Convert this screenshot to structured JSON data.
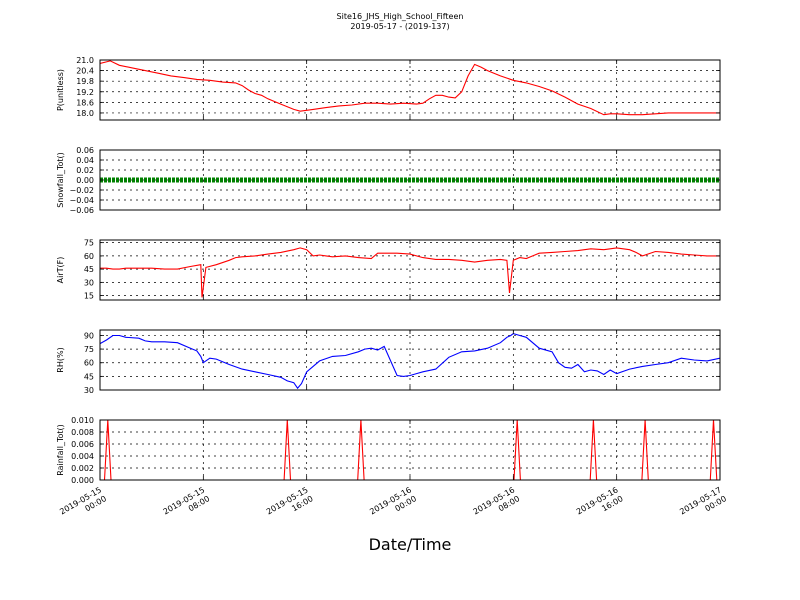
{
  "figure": {
    "title": "Site16_JHS_High_School_Fifteen",
    "subtitle": "2019-05-17 - (2019-137)",
    "xlabel": "Date/Time",
    "x_ticks": [
      {
        "t": 0,
        "line1": "2019-05-15",
        "line2": "00:00"
      },
      {
        "t": 8,
        "line1": "2019-05-15",
        "line2": "08:00"
      },
      {
        "t": 16,
        "line1": "2019-05-15",
        "line2": "16:00"
      },
      {
        "t": 24,
        "line1": "2019-05-16",
        "line2": "00:00"
      },
      {
        "t": 32,
        "line1": "2019-05-16",
        "line2": "08:00"
      },
      {
        "t": 40,
        "line1": "2019-05-16",
        "line2": "16:00"
      },
      {
        "t": 48,
        "line1": "2019-05-17",
        "line2": "00:00"
      }
    ],
    "x_range_hours": [
      0,
      48
    ]
  },
  "chart_data": [
    {
      "type": "line",
      "ylabel": "P(unitless)",
      "color": "#ff0000",
      "ylim": [
        17.6,
        21.0
      ],
      "yticks": [
        "21.0",
        "20.4",
        "19.8",
        "19.2",
        "18.6",
        "18.0"
      ],
      "ytick_values": [
        21.0,
        20.4,
        19.8,
        19.2,
        18.6,
        18.0
      ],
      "grid": true,
      "x": [
        0,
        0.8,
        1.5,
        2.5,
        3.5,
        4.5,
        5.5,
        6.5,
        7.5,
        8.5,
        9.5,
        10.5,
        11.0,
        11.5,
        12.0,
        12.5,
        13.0,
        14.0,
        15.0,
        15.5,
        16.5,
        17.5,
        18.5,
        19.5,
        20.5,
        21.5,
        22.5,
        23.5,
        24.5,
        25.0,
        25.5,
        26.0,
        26.5,
        27.0,
        27.5,
        28.0,
        28.5,
        29.0,
        29.5,
        30.0,
        31.0,
        32.0,
        33.0,
        34.0,
        35.0,
        36.0,
        37.0,
        38.0,
        39.0,
        39.5,
        40.0,
        41.0,
        42.0,
        43.0,
        44.0,
        45.0,
        46.0,
        47.0,
        48.0
      ],
      "y": [
        20.8,
        20.95,
        20.7,
        20.55,
        20.4,
        20.25,
        20.1,
        20.0,
        19.9,
        19.85,
        19.75,
        19.7,
        19.55,
        19.3,
        19.1,
        19.0,
        18.8,
        18.5,
        18.2,
        18.1,
        18.2,
        18.3,
        18.4,
        18.45,
        18.55,
        18.55,
        18.5,
        18.55,
        18.5,
        18.55,
        18.8,
        19.0,
        19.0,
        18.9,
        18.85,
        19.2,
        20.1,
        20.75,
        20.6,
        20.4,
        20.1,
        19.85,
        19.7,
        19.5,
        19.25,
        18.9,
        18.5,
        18.25,
        17.9,
        17.95,
        17.95,
        17.9,
        17.9,
        17.95,
        18.0,
        18.0,
        18.0,
        18.0,
        18.0
      ]
    },
    {
      "type": "line",
      "ylabel": "Snowfall_Tot()",
      "color": "#008000",
      "ylim": [
        -0.06,
        0.06
      ],
      "yticks": [
        "0.06",
        "0.04",
        "0.02",
        "0.00",
        "−0.02",
        "−0.04",
        "−0.06"
      ],
      "ytick_values": [
        0.06,
        0.04,
        0.02,
        0.0,
        -0.02,
        -0.04,
        -0.06
      ],
      "grid": true,
      "marker": "dot",
      "x_range": [
        0,
        48
      ],
      "constant_value": 0.0
    },
    {
      "type": "line",
      "ylabel": "AirT(F)",
      "color": "#ff0000",
      "ylim": [
        10,
        78
      ],
      "yticks": [
        "75",
        "60",
        "45",
        "30",
        "15"
      ],
      "ytick_values": [
        75,
        60,
        45,
        30,
        15
      ],
      "grid": true,
      "x": [
        0,
        0.5,
        1.0,
        1.5,
        2.0,
        3.0,
        4.0,
        5.0,
        6.0,
        7.0,
        7.8,
        7.9,
        8.2,
        9.0,
        10.0,
        10.5,
        11.0,
        12.0,
        13.0,
        14.0,
        15.0,
        15.5,
        16.0,
        16.5,
        17.0,
        17.5,
        18.0,
        19.0,
        20.0,
        21.0,
        21.5,
        22.0,
        23.0,
        24.0,
        25.0,
        26.0,
        27.0,
        28.0,
        29.0,
        30.0,
        31.0,
        31.5,
        31.7,
        32.0,
        32.5,
        33.0,
        33.5,
        34.0,
        35.0,
        36.0,
        37.0,
        38.0,
        39.0,
        40.0,
        41.0,
        41.5,
        42.0,
        43.0,
        44.0,
        45.0,
        46.0,
        47.0,
        48.0
      ],
      "y": [
        46,
        46,
        45,
        45,
        46,
        46,
        46,
        45,
        45,
        48,
        50,
        13,
        47,
        50,
        55,
        58,
        59,
        60,
        62,
        64,
        67,
        69,
        67,
        60,
        61,
        60,
        59,
        60,
        58,
        57,
        63,
        63,
        63,
        62,
        58,
        56,
        56,
        55,
        53,
        55,
        56,
        55,
        18,
        55,
        58,
        57,
        60,
        63,
        64,
        65,
        66,
        68,
        67,
        69,
        67,
        64,
        60,
        65,
        64,
        62,
        61,
        60,
        60
      ]
    },
    {
      "type": "line",
      "ylabel": "RH(%)",
      "color": "#0000ff",
      "ylim": [
        30,
        96
      ],
      "yticks": [
        "90",
        "75",
        "60",
        "45",
        "30"
      ],
      "ytick_values": [
        90,
        75,
        60,
        45,
        30
      ],
      "grid": true,
      "x": [
        0,
        0.5,
        1.0,
        1.5,
        2.0,
        3.0,
        3.5,
        4.0,
        5.0,
        6.0,
        7.0,
        7.5,
        7.8,
        8.0,
        8.5,
        9.0,
        10.0,
        11.0,
        12.0,
        13.0,
        14.0,
        14.5,
        15.0,
        15.3,
        15.6,
        16.0,
        16.5,
        17.0,
        18.0,
        19.0,
        20.0,
        20.5,
        21.0,
        21.5,
        22.0,
        23.0,
        23.5,
        24.0,
        24.5,
        25.0,
        26.0,
        27.0,
        28.0,
        29.0,
        30.0,
        31.0,
        31.5,
        31.8,
        32.0,
        32.5,
        33.0,
        34.0,
        35.0,
        35.5,
        36.0,
        36.5,
        37.0,
        37.5,
        38.0,
        38.5,
        39.0,
        39.5,
        40.0,
        41.0,
        42.0,
        43.0,
        44.0,
        45.0,
        46.0,
        47.0,
        48.0
      ],
      "y": [
        81,
        85,
        90,
        90,
        88,
        87,
        84,
        83,
        83,
        82,
        76,
        73,
        67,
        60,
        65,
        64,
        58,
        53,
        50,
        47,
        44,
        40,
        38,
        32,
        37,
        50,
        56,
        62,
        67,
        68,
        72,
        75,
        76,
        74,
        78,
        46,
        45,
        46,
        48,
        50,
        53,
        66,
        72,
        73,
        76,
        82,
        88,
        90,
        92,
        90,
        88,
        76,
        72,
        60,
        55,
        54,
        58,
        50,
        52,
        51,
        47,
        52,
        48,
        53,
        56,
        58,
        60,
        65,
        63,
        62,
        65
      ]
    },
    {
      "type": "line",
      "ylabel": "Rainfall_Tot()",
      "color": "#ff0000",
      "ylim": [
        0,
        0.01
      ],
      "yticks": [
        "0.010",
        "0.008",
        "0.006",
        "0.004",
        "0.002",
        "0.000"
      ],
      "ytick_values": [
        0.01,
        0.008,
        0.006,
        0.004,
        0.002,
        0.0
      ],
      "grid": true,
      "spikes_at_hours": [
        0.6,
        14.5,
        20.2,
        32.3,
        38.2,
        42.2,
        47.5
      ],
      "spike_value": 0.01,
      "baseline_value": 0.0
    }
  ]
}
